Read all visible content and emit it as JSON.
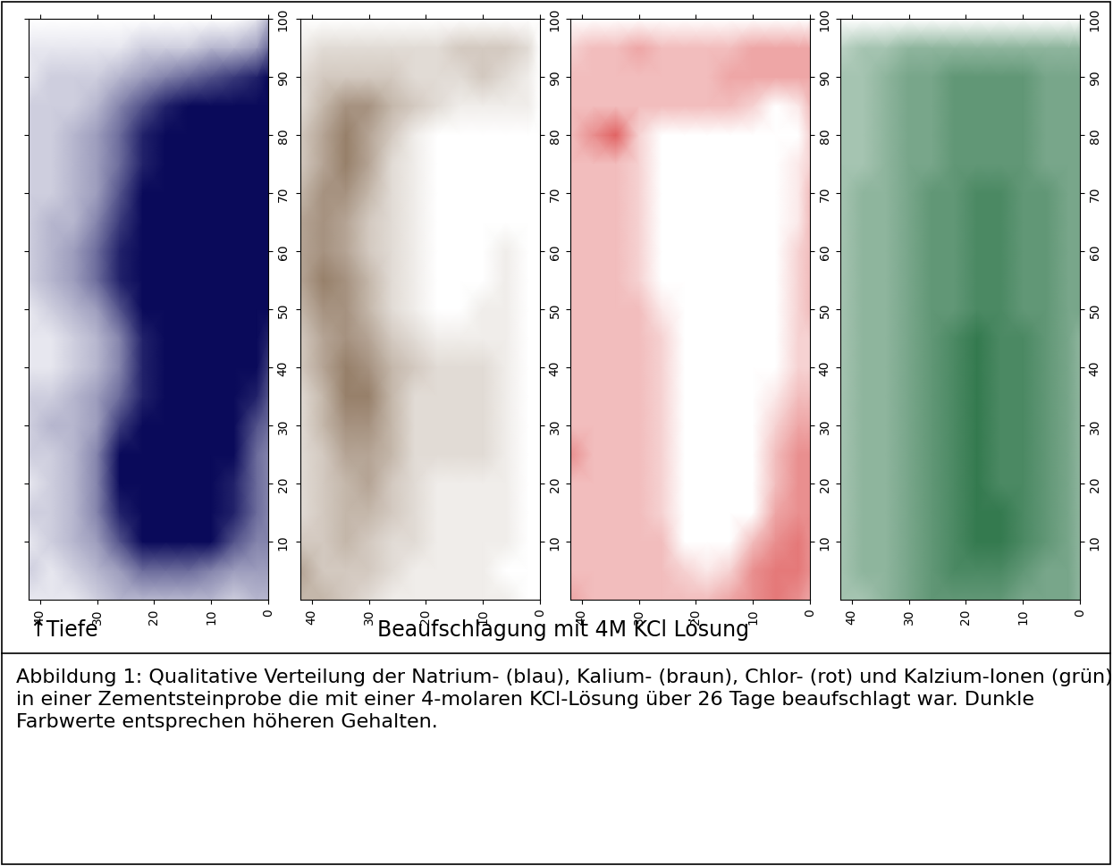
{
  "chart_data": [
    {
      "type": "heatmap",
      "color": "#0a0a5a",
      "xlim": [
        42,
        0
      ],
      "ylim": [
        0,
        100
      ],
      "xticks": [
        40,
        30,
        20,
        10,
        0
      ],
      "yticks": [
        10,
        20,
        30,
        40,
        50,
        60,
        70,
        80,
        90,
        100
      ],
      "x": [
        42,
        38,
        34,
        30,
        26,
        22,
        18,
        14,
        10,
        6,
        2,
        0
      ],
      "y": [
        0,
        5,
        10,
        15,
        20,
        25,
        30,
        35,
        40,
        45,
        50,
        55,
        60,
        65,
        70,
        75,
        80,
        85,
        90,
        95,
        100
      ],
      "value_range": [
        0,
        10
      ],
      "cells": [
        [
          1,
          1,
          1,
          2,
          3,
          3,
          3,
          3,
          3,
          2,
          3,
          3
        ],
        [
          2,
          1,
          2,
          3,
          4,
          6,
          6,
          6,
          5,
          4,
          4,
          4
        ],
        [
          1,
          2,
          3,
          4,
          7,
          10,
          10,
          10,
          10,
          7,
          5,
          5
        ],
        [
          2,
          2,
          3,
          5,
          9,
          10,
          10,
          10,
          10,
          9,
          6,
          5
        ],
        [
          1,
          2,
          3,
          5,
          10,
          10,
          10,
          10,
          10,
          9,
          6,
          5
        ],
        [
          2,
          2,
          3,
          5,
          10,
          10,
          10,
          10,
          10,
          10,
          6,
          5
        ],
        [
          2,
          3,
          3,
          4,
          8,
          10,
          10,
          10,
          10,
          10,
          7,
          6
        ],
        [
          2,
          2,
          3,
          4,
          6,
          9,
          10,
          10,
          10,
          10,
          9,
          7
        ],
        [
          1,
          1,
          2,
          3,
          5,
          9,
          10,
          10,
          10,
          10,
          10,
          8
        ],
        [
          1,
          1,
          2,
          3,
          5,
          9,
          10,
          10,
          10,
          10,
          10,
          9
        ],
        [
          1,
          2,
          3,
          4,
          7,
          10,
          10,
          10,
          10,
          10,
          10,
          10
        ],
        [
          2,
          3,
          4,
          6,
          9,
          10,
          10,
          10,
          10,
          10,
          10,
          10
        ],
        [
          2,
          3,
          4,
          6,
          9,
          10,
          10,
          10,
          10,
          10,
          10,
          10
        ],
        [
          2,
          3,
          3,
          5,
          8,
          10,
          10,
          10,
          10,
          10,
          10,
          10
        ],
        [
          2,
          2,
          3,
          4,
          7,
          10,
          10,
          10,
          10,
          10,
          10,
          10
        ],
        [
          2,
          2,
          3,
          4,
          6,
          9,
          10,
          10,
          10,
          10,
          10,
          10
        ],
        [
          2,
          2,
          3,
          4,
          6,
          9,
          10,
          10,
          10,
          10,
          10,
          10
        ],
        [
          2,
          2,
          2,
          3,
          5,
          7,
          9,
          10,
          10,
          10,
          10,
          10
        ],
        [
          1,
          2,
          2,
          2,
          3,
          4,
          5,
          6,
          7,
          8,
          9,
          10
        ],
        [
          1,
          1,
          1,
          1,
          1,
          2,
          2,
          2,
          3,
          3,
          4,
          6
        ],
        [
          0,
          0,
          0,
          0,
          0,
          0,
          0,
          0,
          0,
          0,
          1,
          3
        ]
      ]
    },
    {
      "type": "heatmap",
      "color": "#6b4a2b",
      "xlim": [
        42,
        0
      ],
      "ylim": [
        0,
        100
      ],
      "xticks": [
        40,
        30,
        20,
        10,
        0
      ],
      "yticks": [
        10,
        20,
        30,
        40,
        50,
        60,
        70,
        80,
        90,
        100
      ],
      "x": [
        42,
        38,
        34,
        30,
        26,
        22,
        18,
        14,
        10,
        6,
        2,
        0
      ],
      "y": [
        0,
        5,
        10,
        15,
        20,
        25,
        30,
        35,
        40,
        45,
        50,
        55,
        60,
        65,
        70,
        75,
        80,
        85,
        90,
        95,
        100
      ],
      "value_range": [
        0,
        10
      ],
      "cells": [
        [
          4,
          4,
          3,
          2,
          1,
          1,
          1,
          1,
          1,
          1,
          0,
          0
        ],
        [
          5,
          3,
          3,
          3,
          2,
          1,
          1,
          1,
          1,
          0,
          0,
          0
        ],
        [
          3,
          3,
          4,
          3,
          2,
          2,
          1,
          1,
          1,
          1,
          0,
          0
        ],
        [
          2,
          3,
          4,
          4,
          3,
          2,
          1,
          1,
          1,
          1,
          0,
          0
        ],
        [
          2,
          3,
          4,
          5,
          3,
          2,
          1,
          1,
          1,
          1,
          0,
          0
        ],
        [
          2,
          3,
          5,
          5,
          4,
          2,
          2,
          2,
          2,
          1,
          0,
          0
        ],
        [
          2,
          4,
          6,
          6,
          4,
          2,
          2,
          2,
          2,
          1,
          0,
          0
        ],
        [
          2,
          4,
          7,
          7,
          4,
          2,
          2,
          2,
          2,
          1,
          0,
          0
        ],
        [
          3,
          5,
          7,
          6,
          4,
          3,
          2,
          2,
          2,
          1,
          0,
          0
        ],
        [
          3,
          5,
          6,
          5,
          3,
          2,
          1,
          1,
          1,
          1,
          0,
          0
        ],
        [
          4,
          6,
          6,
          4,
          2,
          1,
          0,
          0,
          1,
          1,
          0,
          0
        ],
        [
          5,
          7,
          6,
          4,
          2,
          1,
          0,
          0,
          0,
          1,
          0,
          0
        ],
        [
          5,
          6,
          5,
          3,
          2,
          1,
          0,
          0,
          0,
          1,
          0,
          0
        ],
        [
          5,
          6,
          5,
          3,
          2,
          1,
          0,
          0,
          0,
          0,
          0,
          0
        ],
        [
          4,
          6,
          6,
          4,
          2,
          1,
          0,
          0,
          0,
          0,
          0,
          0
        ],
        [
          3,
          5,
          7,
          5,
          2,
          1,
          0,
          0,
          0,
          0,
          0,
          0
        ],
        [
          3,
          5,
          7,
          5,
          3,
          1,
          0,
          0,
          0,
          0,
          0,
          0
        ],
        [
          2,
          4,
          6,
          6,
          4,
          3,
          2,
          1,
          1,
          1,
          1,
          0
        ],
        [
          2,
          3,
          3,
          3,
          3,
          2,
          2,
          2,
          3,
          2,
          1,
          0
        ],
        [
          1,
          2,
          2,
          2,
          2,
          2,
          2,
          3,
          3,
          3,
          2,
          0
        ],
        [
          0,
          0,
          0,
          0,
          0,
          0,
          0,
          0,
          0,
          0,
          0,
          0
        ]
      ]
    },
    {
      "type": "heatmap",
      "color": "#d42020",
      "xlim": [
        42,
        0
      ],
      "ylim": [
        0,
        100
      ],
      "xticks": [
        40,
        30,
        20,
        10,
        0
      ],
      "yticks": [
        10,
        20,
        30,
        40,
        50,
        60,
        70,
        80,
        90,
        100
      ],
      "x": [
        42,
        38,
        34,
        30,
        26,
        22,
        18,
        14,
        10,
        6,
        2,
        0
      ],
      "y": [
        0,
        5,
        10,
        15,
        20,
        25,
        30,
        35,
        40,
        45,
        50,
        55,
        60,
        65,
        70,
        75,
        80,
        85,
        90,
        95,
        100
      ],
      "value_range": [
        0,
        10
      ],
      "cells": [
        [
          4,
          3,
          3,
          3,
          3,
          3,
          3,
          4,
          5,
          6,
          5,
          4
        ],
        [
          3,
          3,
          3,
          3,
          3,
          2,
          1,
          2,
          5,
          6,
          6,
          5
        ],
        [
          3,
          3,
          3,
          3,
          3,
          0,
          0,
          0,
          3,
          5,
          6,
          5
        ],
        [
          3,
          3,
          3,
          3,
          2,
          0,
          0,
          0,
          0,
          4,
          5,
          5
        ],
        [
          3,
          3,
          3,
          3,
          2,
          0,
          0,
          0,
          0,
          3,
          5,
          5
        ],
        [
          5,
          3,
          3,
          3,
          2,
          0,
          0,
          0,
          0,
          3,
          5,
          5
        ],
        [
          3,
          3,
          3,
          3,
          2,
          0,
          0,
          0,
          0,
          2,
          4,
          4
        ],
        [
          3,
          3,
          3,
          3,
          2,
          0,
          0,
          0,
          0,
          1,
          3,
          3
        ],
        [
          3,
          3,
          3,
          3,
          2,
          0,
          0,
          0,
          0,
          0,
          2,
          2
        ],
        [
          3,
          3,
          3,
          3,
          2,
          0,
          0,
          0,
          0,
          0,
          2,
          2
        ],
        [
          3,
          3,
          3,
          3,
          1,
          0,
          0,
          0,
          0,
          0,
          2,
          3
        ],
        [
          3,
          3,
          3,
          2,
          0,
          0,
          0,
          0,
          0,
          0,
          2,
          3
        ],
        [
          3,
          3,
          3,
          2,
          0,
          0,
          0,
          0,
          0,
          0,
          2,
          3
        ],
        [
          3,
          3,
          3,
          2,
          0,
          0,
          0,
          0,
          0,
          0,
          1,
          3
        ],
        [
          3,
          3,
          3,
          2,
          0,
          0,
          0,
          0,
          0,
          0,
          1,
          3
        ],
        [
          3,
          3,
          3,
          2,
          0,
          0,
          0,
          0,
          0,
          0,
          1,
          2
        ],
        [
          3,
          5,
          7,
          2,
          0,
          0,
          0,
          0,
          0,
          0,
          0,
          2
        ],
        [
          3,
          3,
          3,
          3,
          3,
          3,
          3,
          3,
          2,
          0,
          1,
          3
        ],
        [
          3,
          3,
          3,
          3,
          3,
          3,
          3,
          4,
          4,
          4,
          4,
          4
        ],
        [
          2,
          3,
          3,
          4,
          3,
          3,
          3,
          3,
          4,
          4,
          4,
          4
        ],
        [
          0,
          0,
          0,
          0,
          0,
          0,
          0,
          0,
          0,
          0,
          0,
          0
        ]
      ]
    },
    {
      "type": "heatmap",
      "color": "#1e6b3c",
      "xlim": [
        42,
        0
      ],
      "ylim": [
        0,
        100
      ],
      "xticks": [
        40,
        30,
        20,
        10,
        0
      ],
      "yticks": [
        10,
        20,
        30,
        40,
        50,
        60,
        70,
        80,
        90,
        100
      ],
      "x": [
        42,
        38,
        34,
        30,
        26,
        22,
        18,
        14,
        10,
        6,
        2,
        0
      ],
      "y": [
        0,
        5,
        10,
        15,
        20,
        25,
        30,
        35,
        40,
        45,
        50,
        55,
        60,
        65,
        70,
        75,
        80,
        85,
        90,
        95,
        100
      ],
      "value_range": [
        0,
        10
      ],
      "cells": [
        [
          4,
          4,
          5,
          6,
          7,
          7,
          7,
          7,
          6,
          6,
          6,
          5
        ],
        [
          4,
          5,
          5,
          6,
          7,
          8,
          8,
          8,
          7,
          6,
          6,
          5
        ],
        [
          4,
          5,
          5,
          6,
          7,
          8,
          9,
          9,
          8,
          7,
          6,
          5
        ],
        [
          4,
          5,
          5,
          6,
          7,
          8,
          9,
          9,
          8,
          7,
          6,
          5
        ],
        [
          4,
          5,
          5,
          6,
          7,
          8,
          9,
          8,
          8,
          7,
          6,
          5
        ],
        [
          4,
          5,
          5,
          6,
          7,
          8,
          9,
          8,
          8,
          7,
          6,
          5
        ],
        [
          4,
          5,
          5,
          6,
          7,
          8,
          9,
          8,
          8,
          7,
          6,
          5
        ],
        [
          4,
          5,
          5,
          6,
          7,
          8,
          9,
          8,
          8,
          7,
          6,
          5
        ],
        [
          4,
          5,
          5,
          6,
          7,
          8,
          9,
          8,
          8,
          7,
          6,
          5
        ],
        [
          4,
          5,
          5,
          6,
          7,
          8,
          9,
          8,
          8,
          7,
          6,
          5
        ],
        [
          4,
          5,
          5,
          6,
          7,
          7,
          8,
          8,
          7,
          7,
          6,
          6
        ],
        [
          4,
          5,
          5,
          6,
          7,
          7,
          8,
          8,
          7,
          7,
          6,
          6
        ],
        [
          4,
          5,
          5,
          6,
          7,
          7,
          8,
          8,
          7,
          7,
          6,
          6
        ],
        [
          4,
          5,
          5,
          6,
          7,
          7,
          8,
          8,
          7,
          7,
          6,
          6
        ],
        [
          4,
          5,
          5,
          6,
          7,
          7,
          8,
          8,
          7,
          7,
          6,
          6
        ],
        [
          4,
          4,
          5,
          6,
          6,
          7,
          7,
          7,
          7,
          6,
          6,
          6
        ],
        [
          4,
          4,
          5,
          6,
          6,
          7,
          7,
          7,
          7,
          6,
          6,
          6
        ],
        [
          4,
          4,
          5,
          6,
          6,
          7,
          7,
          7,
          7,
          6,
          6,
          6
        ],
        [
          4,
          4,
          5,
          6,
          6,
          7,
          7,
          7,
          7,
          6,
          6,
          6
        ],
        [
          3,
          4,
          4,
          5,
          5,
          5,
          5,
          5,
          5,
          5,
          5,
          5
        ],
        [
          0,
          0,
          0,
          0,
          0,
          0,
          0,
          0,
          0,
          0,
          0,
          0
        ]
      ]
    }
  ],
  "figure_texts": {
    "depth_label": "↑Tiefe",
    "subtitle": "Beaufschlagung mit 4M KCl Lösung",
    "caption": "Abbildung 1: Qualitative Verteilung der Natrium- (blau), Kalium- (braun), Chlor- (rot) und Kalzium-Ionen (grün) in einer Zementsteinprobe die mit einer 4-molaren KCl-Lösung über 26 Tage beaufschlagt war. Dunkle Farbwerte entsprechen höheren Gehalten."
  }
}
